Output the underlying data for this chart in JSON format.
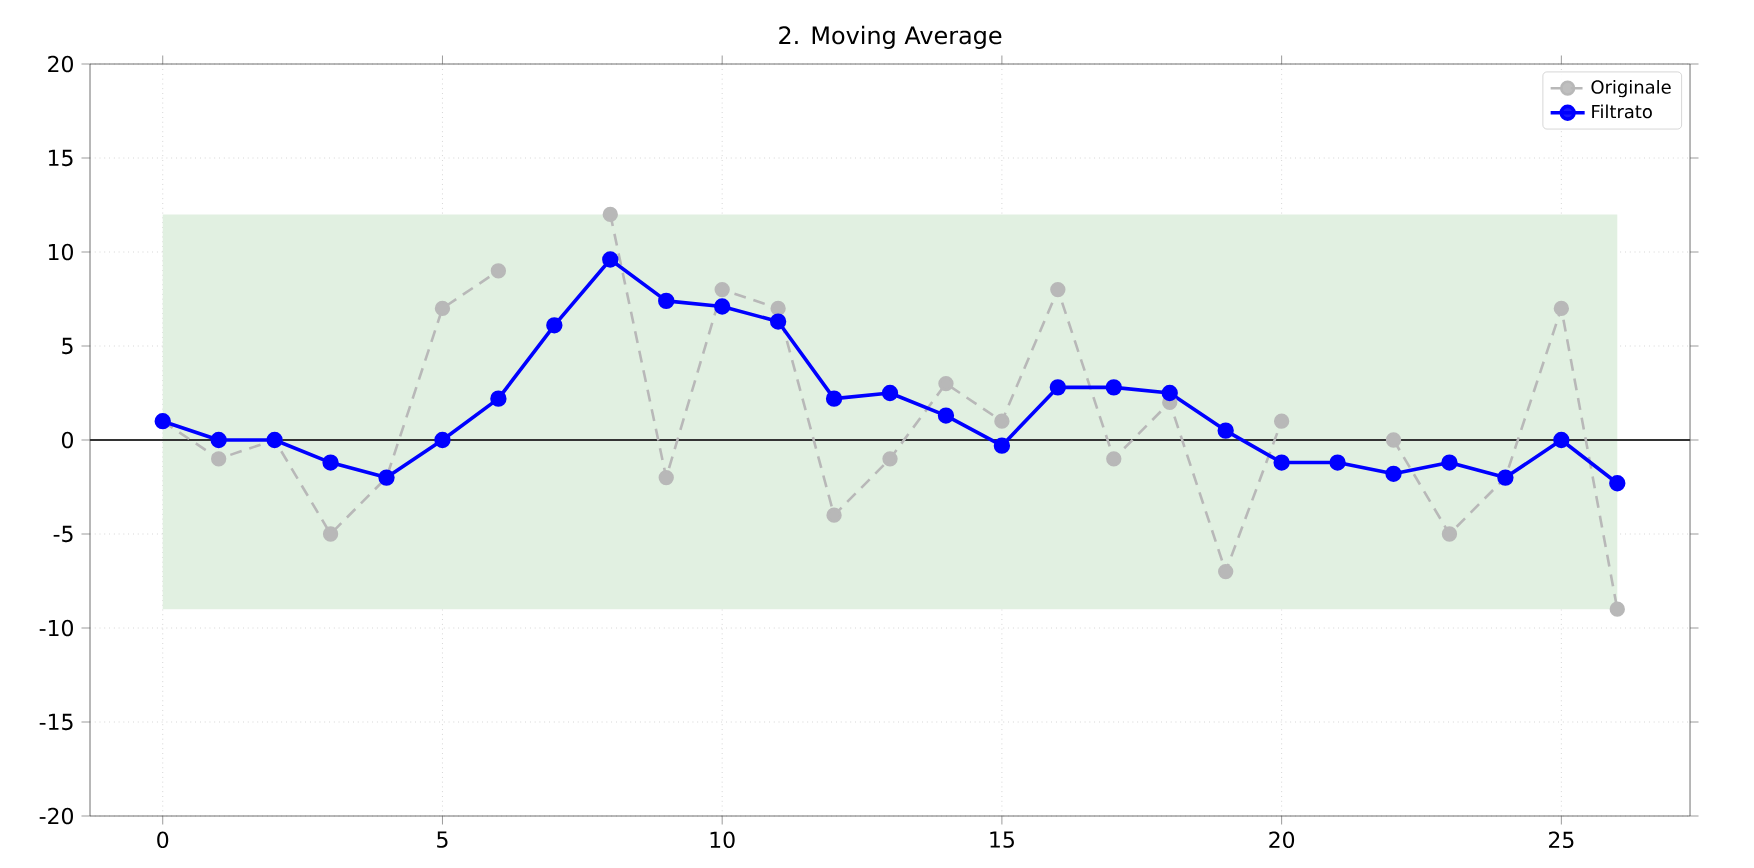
{
  "chart_data": {
    "type": "line",
    "title": "2. Moving Average",
    "x": [
      0,
      1,
      2,
      3,
      4,
      5,
      6,
      7,
      8,
      9,
      10,
      11,
      12,
      13,
      14,
      15,
      16,
      17,
      18,
      19,
      20,
      21,
      22,
      23,
      24,
      25,
      26
    ],
    "series": [
      {
        "name": "Originale",
        "color": "#b8b8b8",
        "line_style": "dashed",
        "values": [
          1,
          -1,
          0,
          -5,
          -2,
          7,
          9,
          null,
          12,
          -2,
          8,
          7,
          -4,
          -1,
          3,
          1,
          8,
          -1,
          2,
          -7,
          1,
          null,
          0,
          -5,
          -2,
          7,
          -9
        ]
      },
      {
        "name": "Filtrato",
        "color": "#0000ff",
        "line_style": "solid",
        "values": [
          1,
          0,
          0,
          -1.2,
          -2,
          0,
          2.2,
          6.1,
          9.6,
          7.4,
          7.1,
          6.3,
          2.2,
          2.5,
          1.3,
          -0.3,
          2.8,
          2.8,
          2.5,
          0.5,
          -1.2,
          -1.2,
          -1.8,
          -1.2,
          -2,
          0,
          -2.3
        ]
      }
    ],
    "xlim": [
      -1.3,
      27.3
    ],
    "ylim": [
      -20,
      20
    ],
    "xticks": [
      0,
      5,
      10,
      15,
      20,
      25
    ],
    "yticks": [
      -20,
      -15,
      -10,
      -5,
      0,
      5,
      10,
      15,
      20
    ],
    "ref_lines": [
      {
        "axis": "y",
        "value": 0,
        "color": "#333333"
      }
    ],
    "bands": [
      {
        "axis": "y",
        "from": -9,
        "to": 12,
        "color": "#e1f0e1"
      }
    ],
    "grid": true,
    "legend": "top right",
    "marker": "circle"
  }
}
